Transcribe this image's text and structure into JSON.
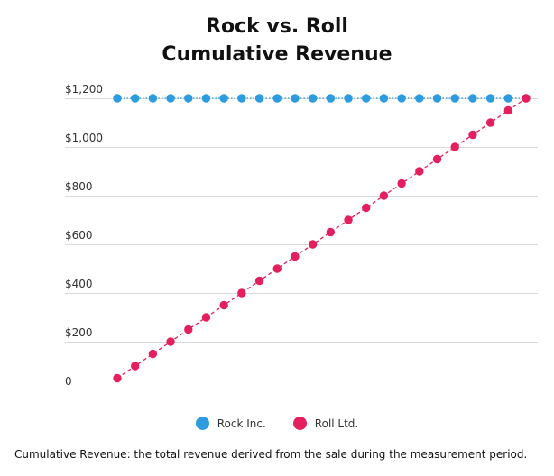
{
  "chart_data": {
    "type": "line",
    "title": [
      "Rock vs. Roll",
      "Cumulative Revenue"
    ],
    "xlabel": "",
    "ylabel": "",
    "ylim": [
      0,
      1200
    ],
    "yticks": [
      0,
      200,
      400,
      600,
      800,
      1000,
      1200
    ],
    "ytick_labels": [
      "0",
      "$200",
      "$400",
      "$600",
      "$800",
      "$1,000",
      "$1,200"
    ],
    "grid": "horizontal",
    "legend_position": "bottom",
    "x": [
      1,
      2,
      3,
      4,
      5,
      6,
      7,
      8,
      9,
      10,
      11,
      12,
      13,
      14,
      15,
      16,
      17,
      18,
      19,
      20,
      21,
      22,
      23,
      24
    ],
    "series": [
      {
        "name": "Rock Inc.",
        "color": "#2c9be0",
        "line_style": "dotted",
        "values": [
          1200,
          1200,
          1200,
          1200,
          1200,
          1200,
          1200,
          1200,
          1200,
          1200,
          1200,
          1200,
          1200,
          1200,
          1200,
          1200,
          1200,
          1200,
          1200,
          1200,
          1200,
          1200,
          1200,
          1200
        ]
      },
      {
        "name": "Roll Ltd.",
        "color": "#e41f5e",
        "line_style": "dashed",
        "values": [
          50,
          100,
          150,
          200,
          250,
          300,
          350,
          400,
          450,
          500,
          550,
          600,
          650,
          700,
          750,
          800,
          850,
          900,
          950,
          1000,
          1050,
          1100,
          1150,
          1200
        ]
      }
    ]
  },
  "footnote": {
    "term": "Cumulative Revenue",
    "definition": ": the total revenue derived from the sale during the measurement period."
  }
}
